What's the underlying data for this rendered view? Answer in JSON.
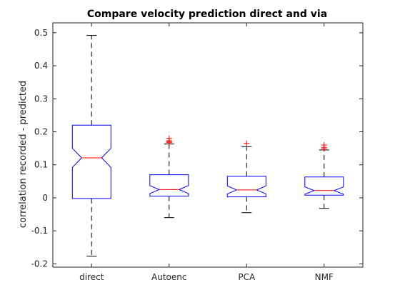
{
  "chart_data": {
    "type": "box",
    "title": "Compare velocity prediction direct and via",
    "xlabel": "",
    "ylabel": "correlation recorded - predicted",
    "ylim": [
      -0.21,
      0.53
    ],
    "yticks": [
      -0.2,
      -0.1,
      0,
      0.1,
      0.2,
      0.3,
      0.4,
      0.5
    ],
    "ytick_labels": [
      "-0.2",
      "-0.1",
      "0",
      "0.1",
      "0.2",
      "0.3",
      "0.4",
      "0.5"
    ],
    "grid": false,
    "notched": true,
    "categories": [
      "direct",
      "Autoenc",
      "PCA",
      "NMF"
    ],
    "boxes": [
      {
        "name": "direct",
        "min": -0.177,
        "q1": -0.002,
        "median": 0.121,
        "q3": 0.22,
        "max": 0.492,
        "notch_low": 0.092,
        "notch_high": 0.15,
        "outliers": []
      },
      {
        "name": "Autoenc",
        "min": -0.06,
        "q1": 0.005,
        "median": 0.025,
        "q3": 0.07,
        "max": 0.163,
        "notch_low": 0.013,
        "notch_high": 0.037,
        "outliers": [
          0.167,
          0.17,
          0.173,
          0.18
        ]
      },
      {
        "name": "PCA",
        "min": -0.045,
        "q1": 0.003,
        "median": 0.024,
        "q3": 0.065,
        "max": 0.155,
        "notch_low": 0.012,
        "notch_high": 0.036,
        "outliers": [
          0.165
        ]
      },
      {
        "name": "NMF",
        "min": -0.032,
        "q1": 0.008,
        "median": 0.022,
        "q3": 0.063,
        "max": 0.145,
        "notch_low": 0.011,
        "notch_high": 0.033,
        "outliers": [
          0.149,
          0.153,
          0.16
        ]
      }
    ],
    "colors": {
      "box": "#0000ff",
      "median": "#ff0000",
      "whisker": "#000000",
      "outlier": "#ff0000",
      "axis": "#262626"
    }
  }
}
